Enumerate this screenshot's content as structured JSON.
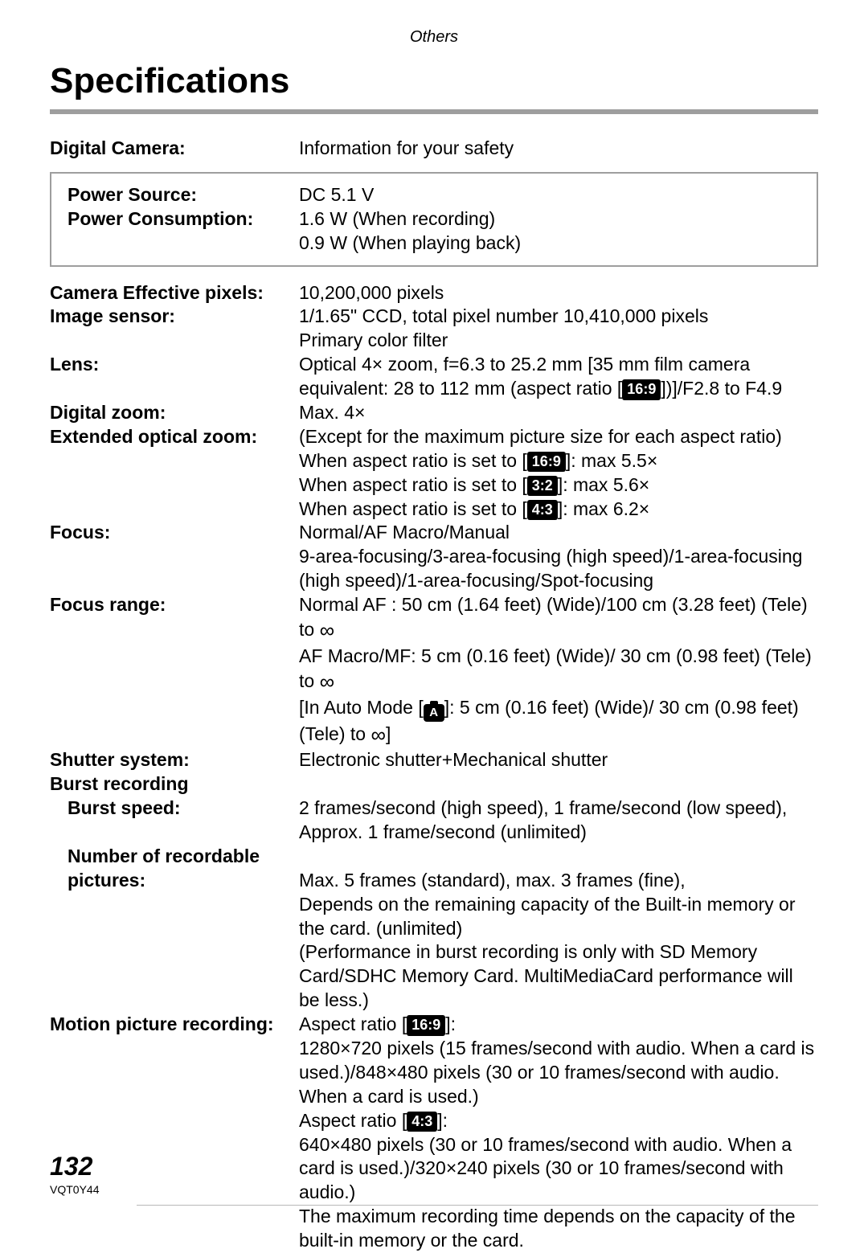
{
  "header": "Others",
  "title": "Specifications",
  "digitalCamera": {
    "label": "Digital Camera:",
    "value": "Information for your safety"
  },
  "powerSource": {
    "label": "Power Source:",
    "value": "DC 5.1 V"
  },
  "powerConsumption": {
    "label": "Power Consumption:",
    "line1": "1.6 W (When recording)",
    "line2": "0.9 W (When playing back)"
  },
  "pixels": {
    "label": "Camera Effective pixels:",
    "value": "10,200,000 pixels"
  },
  "sensor": {
    "label": "Image sensor:",
    "line1": "1/1.65\" CCD, total pixel number 10,410,000 pixels",
    "line2": "Primary color filter"
  },
  "lens": {
    "label": "Lens:",
    "line1": "Optical 4× zoom, f=6.3 to 25.2 mm [35 mm film camera",
    "line2a": "equivalent: 28 to 112 mm (aspect ratio [",
    "badge": "16:9",
    "line2b": "])]/F2.8 to F4.9"
  },
  "dzoom": {
    "label": "Digital zoom:",
    "value": "Max. 4×"
  },
  "ezoom": {
    "label": "Extended optical zoom:",
    "line1": "(Except for the maximum picture size for each aspect ratio)",
    "l2a": "When aspect ratio is set to [",
    "b2": "16:9",
    "l2b": "]: max 5.5×",
    "l3a": "When aspect ratio is set to [",
    "b3": "3:2",
    "l3b": "]: max 5.6×",
    "l4a": "When aspect ratio is set to [",
    "b4": "4:3",
    "l4b": "]: max 6.2×"
  },
  "focus": {
    "label": "Focus:",
    "line1": "Normal/AF Macro/Manual",
    "line2": "9-area-focusing/3-area-focusing (high speed)/1-area-focusing (high speed)/1-area-focusing/Spot-focusing"
  },
  "range": {
    "label": "Focus range:",
    "l1a": "Normal AF : 50 cm (1.64 feet) (Wide)/100 cm (3.28 feet) (Tele) to ",
    "l2a": "AF Macro/MF: 5 cm (0.16 feet) (Wide)/ 30 cm (0.98 feet) (Tele) to ",
    "l3a": "[In Auto Mode [",
    "iconA": "A",
    "l3b": "]:  5 cm (0.16 feet) (Wide)/ 30 cm (0.98 feet) (Tele) to ",
    "l3c": "]"
  },
  "shutter": {
    "label": "Shutter system:",
    "value": "Electronic shutter+Mechanical shutter"
  },
  "burstHeader": "Burst recording",
  "burstSpeed": {
    "label": "Burst speed:",
    "value": "2 frames/second (high speed), 1 frame/second (low speed), Approx. 1 frame/second (unlimited)"
  },
  "numPics": {
    "label1": "Number of recordable",
    "label2": "pictures:",
    "line1": "Max. 5 frames (standard), max. 3 frames (fine),",
    "line2": "Depends on the remaining capacity of the Built-in memory or the card. (unlimited)",
    "line3": "(Performance in burst recording is only with SD Memory Card/SDHC Memory Card. MultiMediaCard performance will be less.)"
  },
  "motion": {
    "label": "Motion picture recording:",
    "l1a": "Aspect ratio [",
    "b1": "16:9",
    "l1b": "]:",
    "line2": "1280×720 pixels (15 frames/second with audio. When a card is used.)/848×480 pixels (30 or 10 frames/second with audio. When a card is used.)",
    "l3a": "Aspect ratio [",
    "b3": "4:3",
    "l3b": "]:",
    "line4": "640×480 pixels (30 or 10 frames/second with audio. When a card is used.)/320×240 pixels (30 or 10 frames/second with audio.)",
    "line5": "The maximum recording time depends on the capacity of the built-in memory or the card."
  },
  "pageNum": "132",
  "docId": "VQT0Y44"
}
